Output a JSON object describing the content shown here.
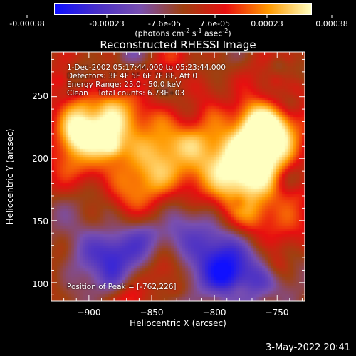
{
  "colorbar": {
    "tick_labels": [
      "-0.00038",
      "-0.00023",
      "-7.6e-05",
      "7.6e-05",
      "0.00023",
      "0.00038"
    ],
    "units_prefix": "(photons cm",
    "units_exp1": "-2",
    "units_mid1": " s",
    "units_exp2": "-1",
    "units_mid2": " asec",
    "units_exp3": "-2",
    "units_suffix": ")",
    "colormap": [
      "#1010ff",
      "#4a30c8",
      "#7a50b0",
      "#a04010",
      "#e81010",
      "#ff9a00",
      "#ffffc0"
    ]
  },
  "title": "Reconstructed RHESSI Image",
  "info": {
    "time_range": "1-Dec-2002 05:17:44.000 to 05:23:44.000",
    "detectors": "Detectors: 3F 4F 5F 6F 7F 8F, Att 0",
    "energy_range": "Energy Range: 25.0 - 50.0 keV",
    "method_counts": "Clean    Total counts: 6.73E+03",
    "peak": "Position of Peak = [-762,226]"
  },
  "chart_data": {
    "type": "heatmap",
    "title": "Reconstructed RHESSI Image",
    "xlabel": "Heliocentric X (arcsec)",
    "ylabel": "Heliocentric Y (arcsec)",
    "xlim": [
      -930,
      -728
    ],
    "ylim": [
      85,
      286
    ],
    "x_ticks": [
      -900,
      -850,
      -800,
      -750
    ],
    "y_ticks": [
      100,
      150,
      200,
      250
    ],
    "value_range": [
      -0.00038,
      0.00038
    ],
    "peak_position": [
      -762,
      226
    ],
    "bright_regions": [
      {
        "x": -762,
        "y": 226,
        "level": 1.0
      },
      {
        "x": -770,
        "y": 200,
        "level": 0.75
      },
      {
        "x": -800,
        "y": 195,
        "level": 0.55
      },
      {
        "x": -840,
        "y": 210,
        "level": 0.55
      },
      {
        "x": -880,
        "y": 230,
        "level": 0.55
      },
      {
        "x": -905,
        "y": 215,
        "level": 0.6
      },
      {
        "x": -860,
        "y": 175,
        "level": 0.45
      },
      {
        "x": -760,
        "y": 150,
        "level": 0.4
      }
    ],
    "dark_regions": [
      {
        "x": -790,
        "y": 110,
        "level": -0.7
      },
      {
        "x": -810,
        "y": 140,
        "level": -0.55
      },
      {
        "x": -900,
        "y": 125,
        "level": -0.55
      },
      {
        "x": -860,
        "y": 130,
        "level": -0.45
      },
      {
        "x": -760,
        "y": 105,
        "level": -0.45
      }
    ]
  },
  "axes": {
    "xlabel": "Heliocentric X (arcsec)",
    "ylabel": "Heliocentric Y (arcsec)",
    "x_tick_labels": [
      "−900",
      "−850",
      "−800",
      "−750"
    ],
    "y_tick_labels": [
      "100",
      "150",
      "200",
      "250"
    ]
  },
  "timestamp": "3-May-2022 20:41"
}
